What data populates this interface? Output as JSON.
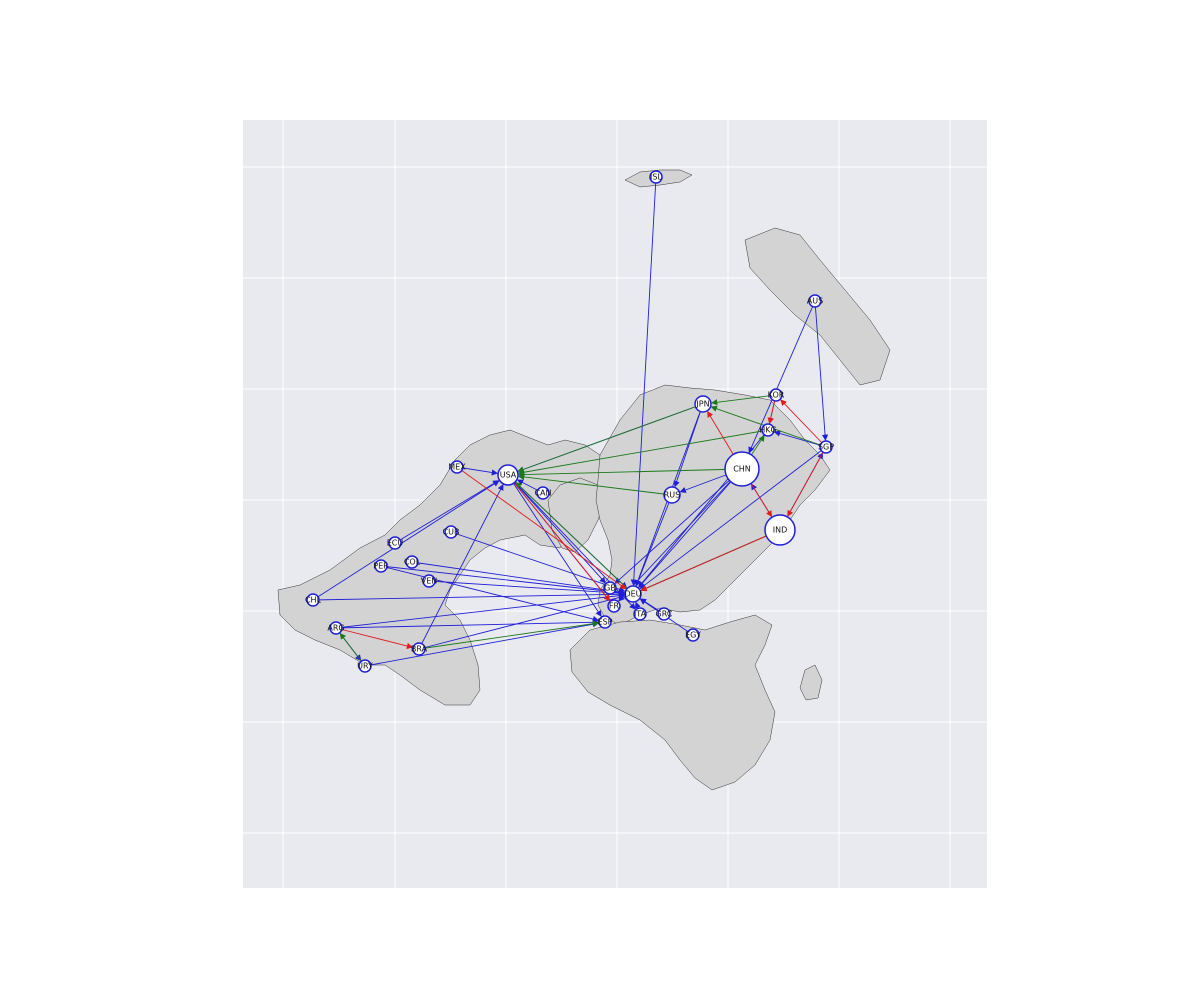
{
  "map": {
    "background": "#e9e9f0",
    "land_color": "#d3d3d3",
    "grid_color": "#ffffff",
    "edge_colors": {
      "blue": "#1f1fd9",
      "red": "#e31a1c",
      "green": "#1a7a1a"
    },
    "node_fill": "#ffffff",
    "node_stroke": "#1f1fd9"
  },
  "nodes": [
    {
      "id": "ISL",
      "label": "ISL"
    },
    {
      "id": "AUS",
      "label": "AUS"
    },
    {
      "id": "JPN",
      "label": "JPN"
    },
    {
      "id": "KOR",
      "label": "KOR"
    },
    {
      "id": "HKG",
      "label": "HKG"
    },
    {
      "id": "SGP",
      "label": "SGP"
    },
    {
      "id": "CHN",
      "label": "CHN"
    },
    {
      "id": "IND",
      "label": "IND"
    },
    {
      "id": "RUS",
      "label": "RUS"
    },
    {
      "id": "USA",
      "label": "USA"
    },
    {
      "id": "MEX",
      "label": "MEX"
    },
    {
      "id": "CAN",
      "label": "CAN"
    },
    {
      "id": "CUB",
      "label": "CUB"
    },
    {
      "id": "ECU",
      "label": "ECU"
    },
    {
      "id": "COL",
      "label": "COL"
    },
    {
      "id": "PER",
      "label": "PER"
    },
    {
      "id": "VEN",
      "label": "VEN"
    },
    {
      "id": "CHL",
      "label": "CHL"
    },
    {
      "id": "ARG",
      "label": "ARG"
    },
    {
      "id": "URY",
      "label": "URY"
    },
    {
      "id": "BRA",
      "label": "BRA"
    },
    {
      "id": "GBR",
      "label": "GB"
    },
    {
      "id": "DEU",
      "label": "DEU"
    },
    {
      "id": "FRA",
      "label": "FR"
    },
    {
      "id": "ESP",
      "label": "ESP"
    },
    {
      "id": "ITA",
      "label": "ITA"
    },
    {
      "id": "GRC",
      "label": "GRC"
    },
    {
      "id": "EGY",
      "label": "EGY"
    }
  ],
  "edges_blue": [
    [
      "ISL",
      "DEU"
    ],
    [
      "AUS",
      "CHN"
    ],
    [
      "AUS",
      "SGP"
    ],
    [
      "JPN",
      "DEU"
    ],
    [
      "JPN",
      "USA"
    ],
    [
      "KOR",
      "HKG"
    ],
    [
      "HKG",
      "DEU"
    ],
    [
      "SGP",
      "HKG"
    ],
    [
      "SGP",
      "DEU"
    ],
    [
      "CHN",
      "DEU"
    ],
    [
      "CHN",
      "FRA"
    ],
    [
      "CHN",
      "GBR"
    ],
    [
      "CHN",
      "RUS"
    ],
    [
      "IND",
      "DEU"
    ],
    [
      "IND",
      "CHN"
    ],
    [
      "RUS",
      "DEU"
    ],
    [
      "USA",
      "DEU"
    ],
    [
      "USA",
      "FRA"
    ],
    [
      "USA",
      "GBR"
    ],
    [
      "USA",
      "ESP"
    ],
    [
      "USA",
      "ITA"
    ],
    [
      "MEX",
      "USA"
    ],
    [
      "CAN",
      "USA"
    ],
    [
      "CUB",
      "DEU"
    ],
    [
      "ECU",
      "USA"
    ],
    [
      "COL",
      "DEU"
    ],
    [
      "PER",
      "DEU"
    ],
    [
      "PER",
      "ESP"
    ],
    [
      "VEN",
      "DEU"
    ],
    [
      "CHL",
      "DEU"
    ],
    [
      "ARG",
      "DEU"
    ],
    [
      "ARG",
      "ESP"
    ],
    [
      "URY",
      "ESP"
    ],
    [
      "BRA",
      "USA"
    ],
    [
      "BRA",
      "DEU"
    ],
    [
      "EGY",
      "DEU"
    ],
    [
      "GRC",
      "DEU"
    ],
    [
      "ITA",
      "DEU"
    ],
    [
      "JPN",
      "RUS"
    ],
    [
      "ARG",
      "URY"
    ],
    [
      "CHL",
      "USA"
    ],
    [
      "IND",
      "SGP"
    ]
  ],
  "edges_red": [
    [
      "MEX",
      "DEU"
    ],
    [
      "CHN",
      "IND"
    ],
    [
      "CHN",
      "JPN"
    ],
    [
      "SGP",
      "IND"
    ],
    [
      "KOR",
      "HKG"
    ],
    [
      "ARG",
      "BRA"
    ],
    [
      "IND",
      "DEU"
    ],
    [
      "USA",
      "FRA"
    ],
    [
      "SGP",
      "KOR"
    ]
  ],
  "edges_green": [
    [
      "JPN",
      "USA"
    ],
    [
      "HKG",
      "USA"
    ],
    [
      "CHN",
      "USA"
    ],
    [
      "RUS",
      "USA"
    ],
    [
      "SGP",
      "JPN"
    ],
    [
      "DEU",
      "USA"
    ],
    [
      "BRA",
      "ESP"
    ],
    [
      "IND",
      "DEU"
    ],
    [
      "URY",
      "ARG"
    ],
    [
      "CHN",
      "HKG"
    ],
    [
      "KOR",
      "JPN"
    ]
  ]
}
